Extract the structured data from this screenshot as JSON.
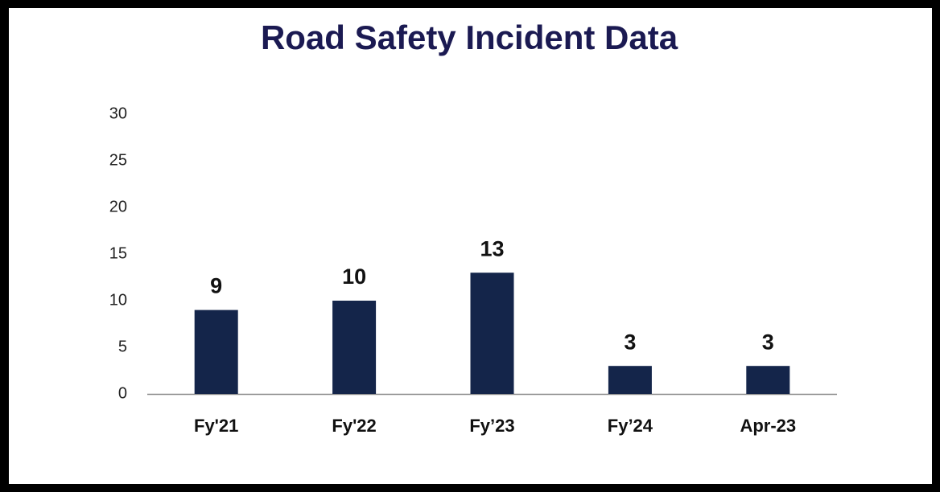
{
  "chart_data": {
    "type": "bar",
    "title": "Road Safety Incident Data",
    "categories": [
      "Fy'21",
      "Fy'22",
      "Fy’23",
      "Fy’24",
      "Apr-23"
    ],
    "values": [
      9,
      10,
      13,
      3,
      3
    ],
    "color": "#14254a",
    "ylim": [
      0,
      30
    ],
    "yticks": [
      0,
      5,
      10,
      15,
      20,
      25,
      30
    ],
    "grid": false
  }
}
